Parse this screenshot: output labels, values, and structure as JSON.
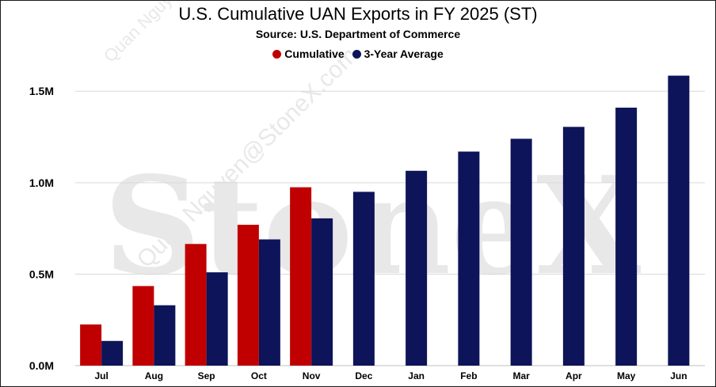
{
  "chart_data": {
    "type": "bar",
    "title": "U.S. Cumulative UAN Exports in FY 2025 (ST)",
    "subtitle": "Source: U.S. Department of Commerce",
    "categories": [
      "Jul",
      "Aug",
      "Sep",
      "Oct",
      "Nov",
      "Dec",
      "Jan",
      "Feb",
      "Mar",
      "Apr",
      "May",
      "Jun"
    ],
    "series": [
      {
        "name": "Cumulative",
        "color": "#C00000",
        "values": [
          225000,
          435000,
          665000,
          770000,
          975000,
          null,
          null,
          null,
          null,
          null,
          null,
          null
        ]
      },
      {
        "name": "3-Year Average",
        "color": "#0D1459",
        "values": [
          135000,
          330000,
          510000,
          690000,
          805000,
          950000,
          1065000,
          1170000,
          1240000,
          1305000,
          1410000,
          1585000
        ]
      }
    ],
    "yticks": [
      {
        "value": 0,
        "label": "0.0M"
      },
      {
        "value": 500000,
        "label": "0.5M"
      },
      {
        "value": 1000000,
        "label": "1.0M"
      },
      {
        "value": 1500000,
        "label": "1.5M"
      }
    ],
    "ylim": [
      0,
      1700000
    ],
    "grid": true,
    "legend_position": "top-center",
    "watermark": {
      "logo": "StoneX",
      "diagonal": "Quan Nguyen@StoneX.com"
    }
  }
}
